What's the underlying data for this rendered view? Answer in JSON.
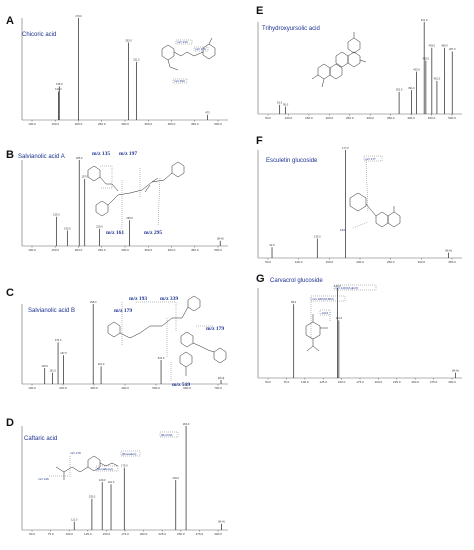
{
  "figure": {
    "panels": [
      "A",
      "B",
      "C",
      "D",
      "E",
      "F",
      "G"
    ]
  },
  "chart_data": [
    {
      "type": "bar",
      "id": "A",
      "title": "Chicoric acid",
      "x_ticks": [
        "100.0",
        "150.0",
        "200.0",
        "250.0",
        "300.0",
        "350.0",
        "400.0",
        "450.0",
        "500.0"
      ],
      "xlim": [
        50,
        520
      ],
      "ylim": [
        0,
        100
      ],
      "peaks": [
        {
          "mz": 133.0,
          "label": "133.0",
          "intensity": 28
        },
        {
          "mz": 135.0,
          "label": "135.0",
          "intensity": 33
        },
        {
          "mz": 179.0,
          "label": "179.0",
          "intensity": 100
        },
        {
          "mz": 293.0,
          "label": "293.0",
          "intensity": 76
        },
        {
          "mz": 311.0,
          "label": "311.0",
          "intensity": 57
        },
        {
          "mz": 473.0,
          "label": "473",
          "intensity": 5
        }
      ],
      "annotations": [
        "m/z 133",
        "m/z 179",
        "m/z 293"
      ]
    },
    {
      "type": "bar",
      "id": "B",
      "title": "Salvianolic acid A",
      "x_ticks": [
        "100.0",
        "150.0",
        "200.0",
        "250.0",
        "300.0",
        "350.0",
        "400.0",
        "450.0",
        "500.0"
      ],
      "xlim": [
        60,
        510
      ],
      "ylim": [
        0,
        100
      ],
      "peaks": [
        {
          "mz": 135.0,
          "label": "135.0",
          "intensity": 34
        },
        {
          "mz": 159.0,
          "label": "159.0",
          "intensity": 18
        },
        {
          "mz": 185.0,
          "label": "185.0",
          "intensity": 100
        },
        {
          "mz": 197.0,
          "label": "197.0",
          "intensity": 78
        },
        {
          "mz": 229.0,
          "label": "229.0",
          "intensity": 20
        },
        {
          "mz": 295.0,
          "label": "295.0",
          "intensity": 30
        },
        {
          "mz": 493.0,
          "label": "[M-H]",
          "intensity": 6
        }
      ],
      "annotations": [
        "m/z 135",
        "m/z 197",
        "m/z 161",
        "m/z 295"
      ]
    },
    {
      "type": "bar",
      "id": "C",
      "title": "Salvianolic acid B",
      "x_ticks": [
        "100.0",
        "200.0",
        "300.0",
        "400.0",
        "500.0",
        "600.0",
        "700.0"
      ],
      "xlim": [
        60,
        740
      ],
      "ylim": [
        0,
        100
      ],
      "peaks": [
        {
          "mz": 135.0,
          "label": "135.0",
          "intensity": 20
        },
        {
          "mz": 161.0,
          "label": "161.0",
          "intensity": 14
        },
        {
          "mz": 179.0,
          "label": "179.0",
          "intensity": 52
        },
        {
          "mz": 197.0,
          "label": "197.0",
          "intensity": 36
        },
        {
          "mz": 295.0,
          "label": "295.0",
          "intensity": 100
        },
        {
          "mz": 321.0,
          "label": "321.0",
          "intensity": 22
        },
        {
          "mz": 519.0,
          "label": "519.0",
          "intensity": 30
        },
        {
          "mz": 717.0,
          "label": "[M-H]",
          "intensity": 5
        }
      ],
      "annotations": [
        "m/z 193",
        "m/z 339",
        "m/z 179",
        "m/z 179",
        "m/z 519"
      ]
    },
    {
      "type": "bar",
      "id": "D",
      "title": "Caftaric acid",
      "x_ticks": [
        "50.0",
        "75.0",
        "100.0",
        "125.0",
        "150.0",
        "175.0",
        "200.0",
        "225.0",
        "250.0",
        "275.0",
        "300.0"
      ],
      "xlim": [
        40,
        320
      ],
      "ylim": [
        0,
        100
      ],
      "peaks": [
        {
          "mz": 111.0,
          "label": "111.0",
          "intensity": 8
        },
        {
          "mz": 135.0,
          "label": "135.0",
          "intensity": 30
        },
        {
          "mz": 149.0,
          "label": "149.0",
          "intensity": 46
        },
        {
          "mz": 161.0,
          "label": "161.0",
          "intensity": 44
        },
        {
          "mz": 179.0,
          "label": "179.0",
          "intensity": 60
        },
        {
          "mz": 249.0,
          "label": "249.0",
          "intensity": 48
        },
        {
          "mz": 263.0,
          "label": "263.0",
          "intensity": 100
        },
        {
          "mz": 311.0,
          "label": "[M-H]",
          "intensity": 6
        }
      ],
      "annotations": [
        "m/z 179",
        "m/z 149",
        "[M-caffeoyl]",
        "[M-tartaric]",
        "[M-CO2]"
      ]
    },
    {
      "type": "bar",
      "id": "E",
      "title": "Trihydroxyursolic acid",
      "x_ticks": [
        "50.0",
        "100.0",
        "150.0",
        "200.0",
        "250.0",
        "300.0",
        "350.0",
        "400.0",
        "450.0",
        "500.0"
      ],
      "xlim": [
        30,
        510
      ],
      "ylim": [
        0,
        100
      ],
      "peaks": [
        {
          "mz": 81.0,
          "label": "81.0",
          "intensity": 10
        },
        {
          "mz": 95.0,
          "label": "95.0",
          "intensity": 8
        },
        {
          "mz": 362.0,
          "label": "362.0",
          "intensity": 24
        },
        {
          "mz": 391.0,
          "label": "391.0",
          "intensity": 26
        },
        {
          "mz": 403.0,
          "label": "403.0",
          "intensity": 46
        },
        {
          "mz": 421.0,
          "label": "421.0",
          "intensity": 100
        },
        {
          "mz": 425.0,
          "label": "425.0",
          "intensity": 58
        },
        {
          "mz": 439.0,
          "label": "439.0",
          "intensity": 72
        },
        {
          "mz": 451.0,
          "label": "451.0",
          "intensity": 36
        },
        {
          "mz": 469.0,
          "label": "469.0",
          "intensity": 72
        },
        {
          "mz": 487.0,
          "label": "487.0",
          "intensity": 68
        }
      ]
    },
    {
      "type": "bar",
      "id": "F",
      "title": "Esculetin glucoside",
      "x_ticks": [
        "50.0",
        "100.0",
        "150.0",
        "200.0",
        "250.0",
        "300.0",
        "350.0"
      ],
      "xlim": [
        40,
        360
      ],
      "ylim": [
        0,
        100
      ],
      "peaks": [
        {
          "mz": 62.0,
          "label": "62.0",
          "intensity": 10
        },
        {
          "mz": 133.0,
          "label": "133.0",
          "intensity": 18
        },
        {
          "mz": 177.0,
          "label": "177.0",
          "intensity": 100
        },
        {
          "mz": 339.0,
          "label": "[M-H]",
          "intensity": 5
        }
      ],
      "annotations": [
        "m/z 177",
        "162"
      ]
    },
    {
      "type": "bar",
      "id": "G",
      "title": "Carvacrol glucoside",
      "x_ticks": [
        "50.0",
        "75.0",
        "100.0",
        "125.0",
        "150.0",
        "175.0",
        "200.0",
        "225.0",
        "250.0",
        "275.0",
        "300.0"
      ],
      "xlim": [
        40,
        320
      ],
      "ylim": [
        0,
        100
      ],
      "peaks": [
        {
          "mz": 89.0,
          "label": "89.0",
          "intensity": 82
        },
        {
          "mz": 149.0,
          "label": "149.0",
          "intensity": 100
        },
        {
          "mz": 151.0,
          "label": "151.0",
          "intensity": 64
        },
        {
          "mz": 311.0,
          "label": "[M-H]",
          "intensity": 6
        }
      ],
      "annotations": [
        "m/z 149 [M-glcO]",
        "m/z 180 [M-MO]",
        "-CH3"
      ]
    }
  ]
}
